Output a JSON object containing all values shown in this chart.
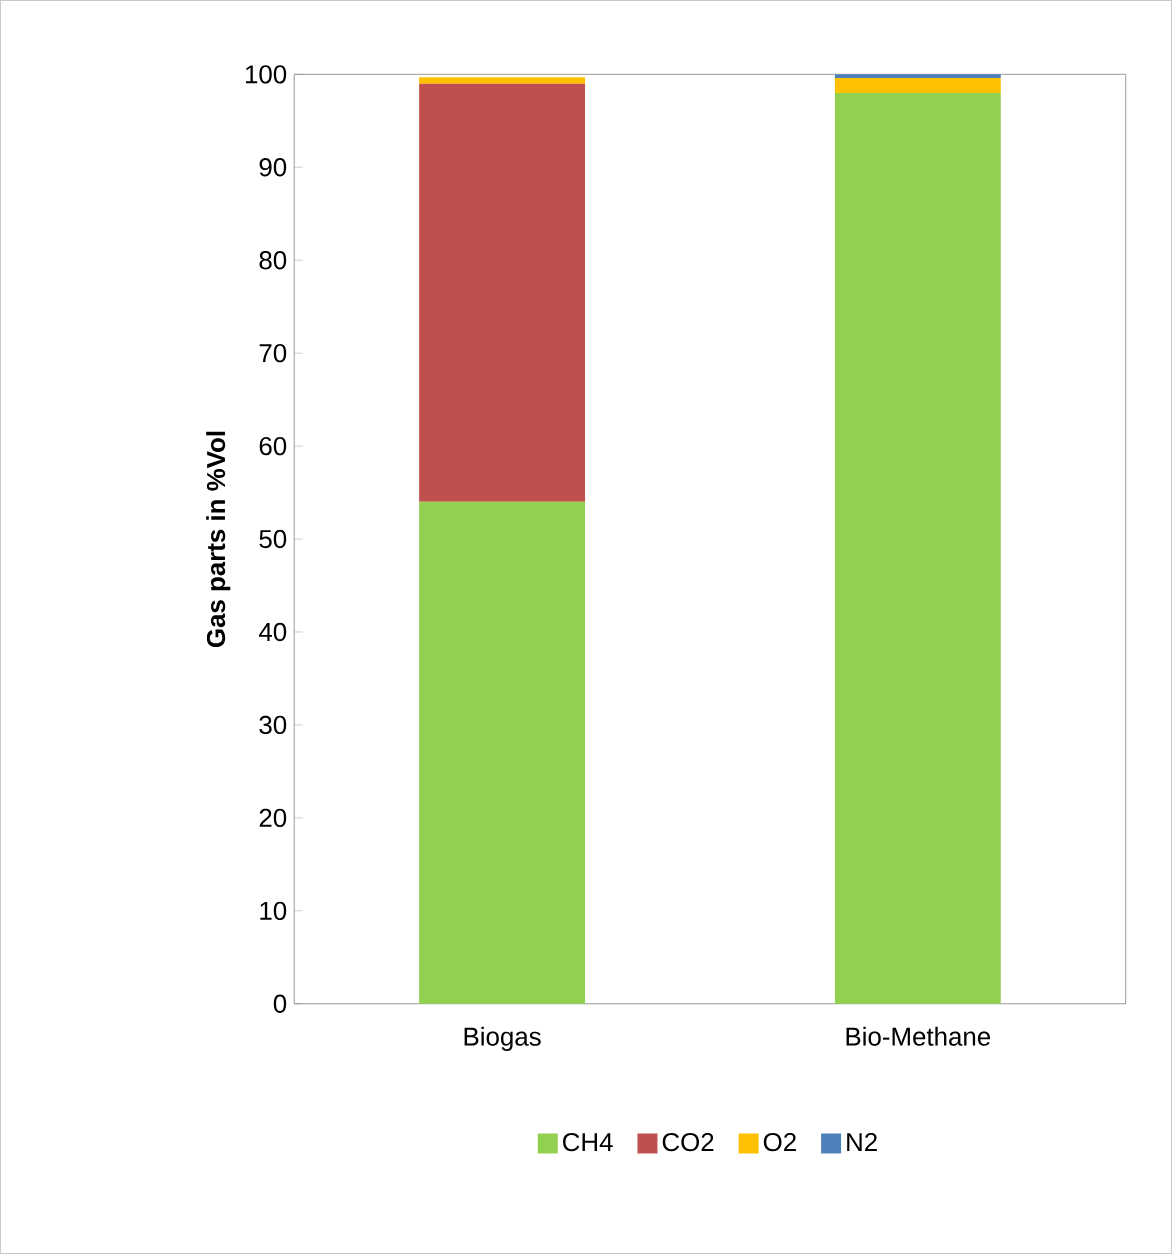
{
  "chart_data": {
    "type": "bar",
    "stacked": true,
    "ylabel": "Gas parts in  %Vol",
    "categories": [
      "Biogas",
      "Bio-Methane"
    ],
    "series": [
      {
        "name": "CH4",
        "color": "#92d050",
        "values": [
          54,
          98
        ]
      },
      {
        "name": "CO2",
        "color": "#c0504d",
        "values": [
          45,
          0
        ]
      },
      {
        "name": "O2",
        "color": "#ffc000",
        "values": [
          0.7,
          1.6
        ]
      },
      {
        "name": "N2",
        "color": "#4f81bd",
        "values": [
          0,
          0.4
        ]
      }
    ],
    "ylim": [
      0,
      100
    ],
    "yticks": [
      0,
      10,
      20,
      30,
      40,
      50,
      60,
      70,
      80,
      90,
      100
    ],
    "grid": false,
    "legend": "bottom"
  }
}
